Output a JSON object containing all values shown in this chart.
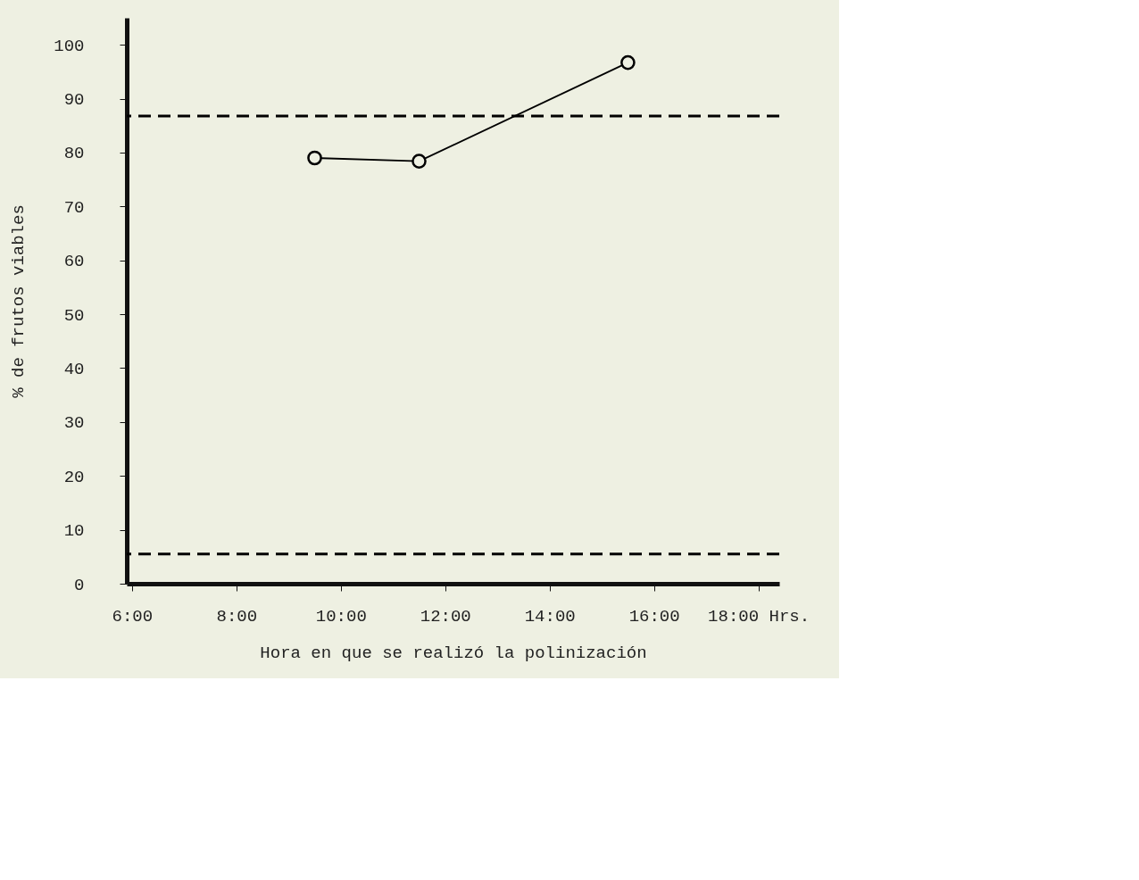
{
  "chart_data": {
    "type": "line",
    "xlabel": "Hora en que se realizó la polinización",
    "ylabel": "% de frutos viables",
    "series": [
      {
        "color": "#000000",
        "x": [
          9.5,
          11.5,
          15.5
        ],
        "values": [
          79,
          78.4,
          96.7
        ]
      }
    ],
    "xlim": [
      5.9,
      18.4
    ],
    "ylim": [
      0,
      105
    ],
    "xticks": [
      {
        "value": 6,
        "label": "6:00"
      },
      {
        "value": 8,
        "label": "8:00"
      },
      {
        "value": 10,
        "label": "10:00"
      },
      {
        "value": 12,
        "label": "12:00"
      },
      {
        "value": 14,
        "label": "14:00"
      },
      {
        "value": 16,
        "label": "16:00"
      },
      {
        "value": 18,
        "label": "18:00 Hrs."
      }
    ],
    "yticks": [
      0,
      10,
      20,
      30,
      40,
      50,
      60,
      70,
      80,
      90,
      100
    ],
    "ref_lines": [
      {
        "axis": "y",
        "value": 86.8,
        "color": "#000000",
        "line_style": "dashed"
      },
      {
        "axis": "y",
        "value": 5.5,
        "color": "#000000",
        "line_style": "dashed"
      }
    ],
    "marker": "circle",
    "line_style": "solid",
    "grid": false
  }
}
